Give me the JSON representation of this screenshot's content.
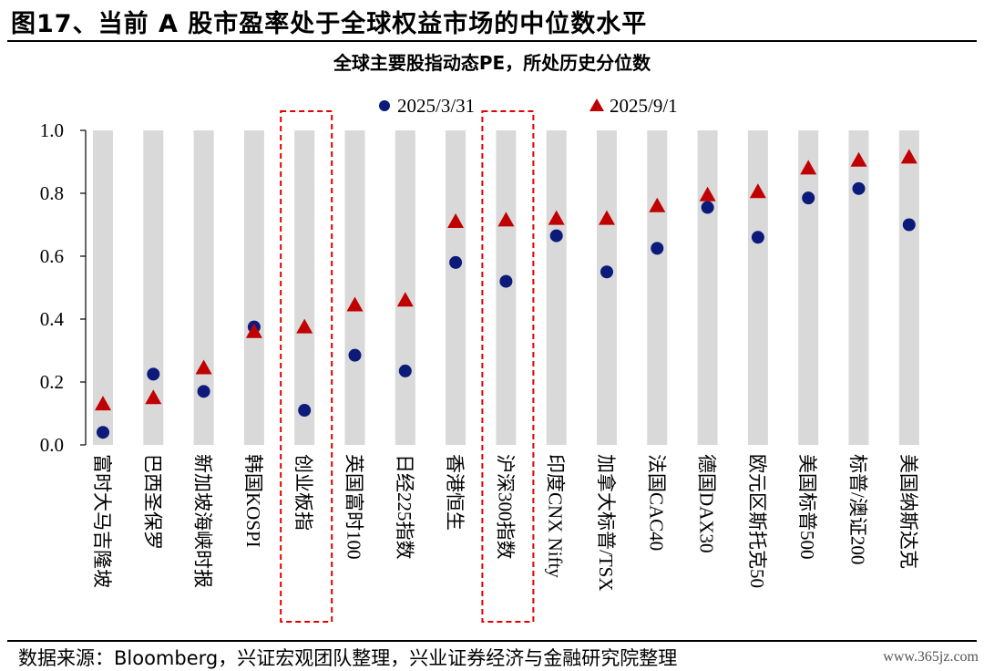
{
  "header": {
    "figure_title": "图17、当前 A 股市盈率处于全球权益市场的中位数水平"
  },
  "footer": {
    "source": "数据来源：Bloomberg，兴证宏观团队整理，兴业证券经济与金融研究院整理",
    "watermark": "www.365jz.com"
  },
  "colors": {
    "series_circle": "#0c1a7a",
    "series_triangle": "#c00000",
    "column_band": "#d9d9d9",
    "highlight_box": "#e00000"
  },
  "chart_data": {
    "type": "scatter",
    "title": "全球主要股指动态PE，所处历史分位数",
    "xlabel": "",
    "ylabel": "",
    "ylim": [
      0,
      1.0
    ],
    "yticks": [
      "0.0",
      "0.2",
      "0.4",
      "0.6",
      "0.8",
      "1.0"
    ],
    "grid": false,
    "legend_position": "top",
    "categories": [
      "富时大马吉隆坡",
      "巴西圣保罗",
      "新加坡海峡时报",
      "韩国KOSPI",
      "创业板指",
      "英国富时100",
      "日经225指数",
      "香港恒生",
      "沪深300指数",
      "印度CNX Nifty",
      "加拿大标普/TSX",
      "法国CAC40",
      "德国DAX30",
      "欧元区斯托克50",
      "美国标普500",
      "标普/澳证200",
      "美国纳斯达克"
    ],
    "highlighted_categories": [
      "创业板指",
      "沪深300指数"
    ],
    "series": [
      {
        "name": "2025/3/31",
        "marker": "circle",
        "values": [
          0.04,
          0.225,
          0.17,
          0.375,
          0.11,
          0.285,
          0.235,
          0.58,
          0.52,
          0.665,
          0.55,
          0.625,
          0.755,
          0.66,
          0.785,
          0.815,
          0.7
        ]
      },
      {
        "name": "2025/9/1",
        "marker": "triangle",
        "values": [
          0.13,
          0.15,
          0.245,
          0.36,
          0.375,
          0.445,
          0.46,
          0.71,
          0.715,
          0.72,
          0.72,
          0.76,
          0.795,
          0.805,
          0.88,
          0.905,
          0.915
        ]
      }
    ]
  }
}
